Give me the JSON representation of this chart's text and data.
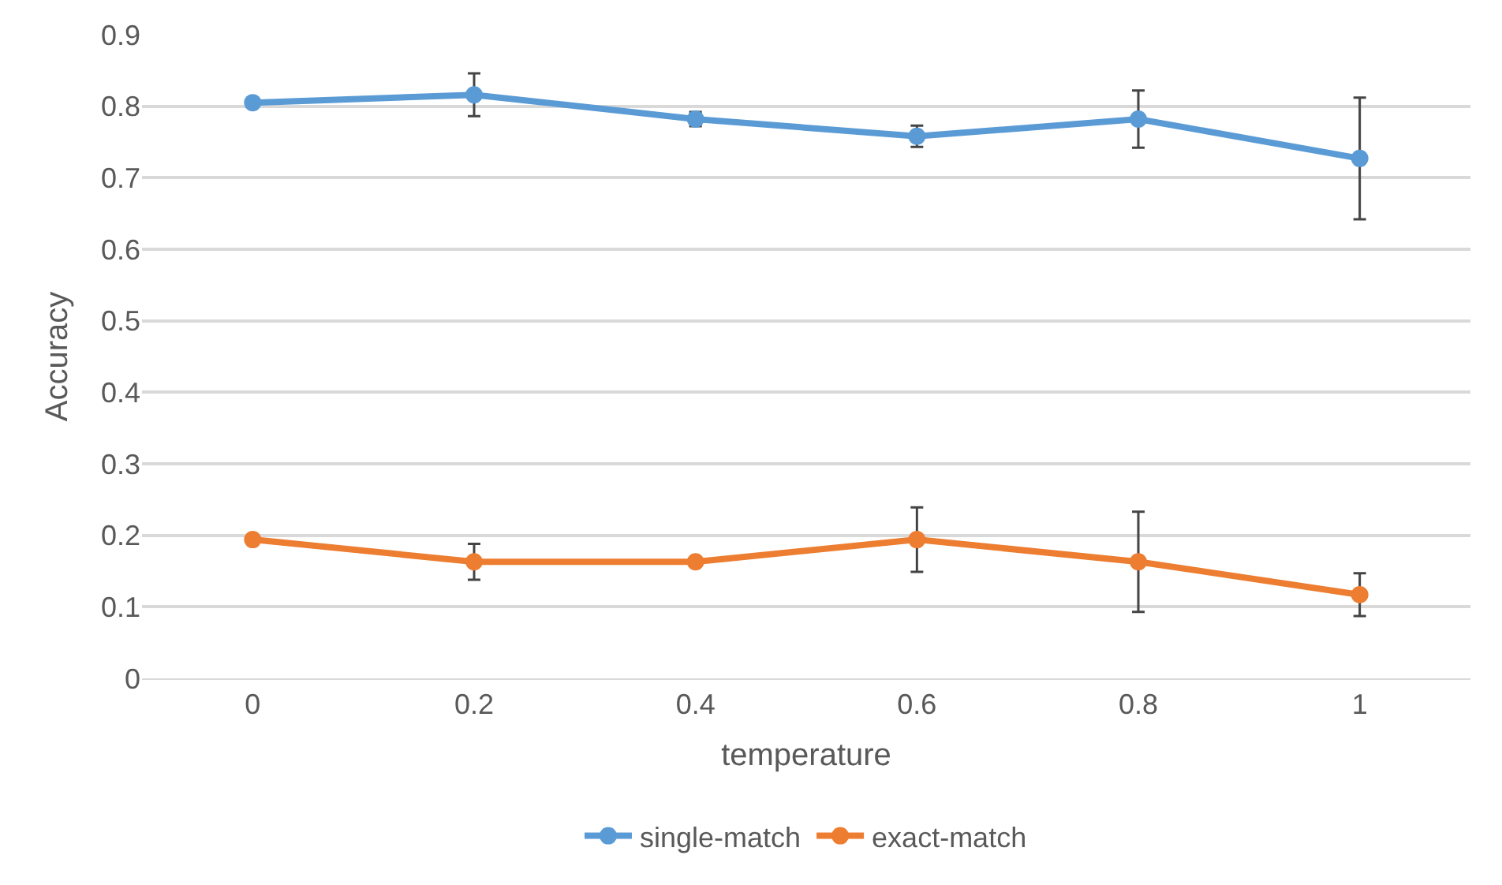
{
  "chart_data": {
    "type": "line",
    "xlabel": "temperature",
    "ylabel": "Accuracy",
    "categories": [
      "0",
      "0.2",
      "0.4",
      "0.6",
      "0.8",
      "1"
    ],
    "series": [
      {
        "name": "single-match",
        "color": "#5b9bd5",
        "values": [
          0.805,
          0.816,
          0.782,
          0.758,
          0.782,
          0.727
        ],
        "errors": [
          null,
          0.03,
          0.01,
          0.015,
          0.04,
          0.085
        ]
      },
      {
        "name": "exact-match",
        "color": "#ed7d31",
        "values": [
          0.194,
          0.163,
          0.163,
          0.194,
          0.163,
          0.117
        ],
        "errors": [
          null,
          0.025,
          null,
          0.045,
          0.07,
          0.03
        ]
      }
    ],
    "ylim": [
      0,
      0.9
    ],
    "yticks": [
      0,
      0.1,
      0.2,
      0.3,
      0.4,
      0.5,
      0.6,
      0.7,
      0.8,
      0.9
    ],
    "grid": "y",
    "legend": "bottom",
    "marker": "circle",
    "line_style": "solid"
  }
}
